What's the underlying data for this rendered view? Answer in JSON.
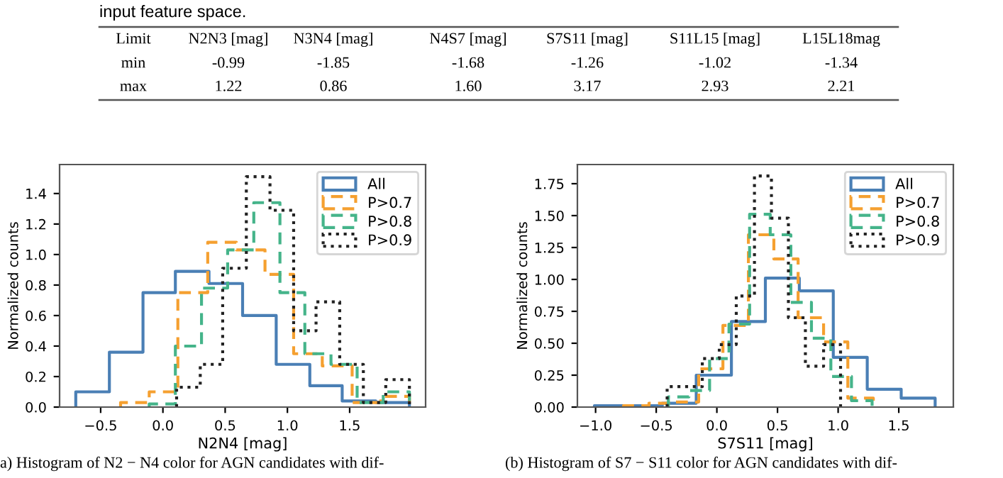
{
  "chart_data": [
    {
      "type": "other",
      "title": "input feature space.",
      "categories": [
        "Limit",
        "N2N3 [mag]",
        "N3N4 [mag]",
        "N4S7 [mag]",
        "S7S11 [mag]",
        "S11L15 [mag]",
        "L15L18mag"
      ],
      "cell_labels": [
        [
          "min",
          "-0.99",
          "-1.85",
          "-1.68",
          "-1.26",
          "-1.02",
          "-1.34"
        ],
        [
          "max",
          "1.22",
          "0.86",
          "1.60",
          "3.17",
          "2.93",
          "2.21"
        ]
      ]
    },
    {
      "type": "line",
      "xlabel": "N2N4 [mag]",
      "ylabel": "Normalized counts",
      "legend": "top right",
      "xlim": [
        -0.83,
        2.11
      ],
      "ylim": [
        0,
        1.59
      ],
      "xticks": [
        {
          "value": -0.5,
          "label": "−0.5"
        },
        {
          "value": 0,
          "label": "0.0"
        },
        {
          "value": 0.5,
          "label": "0.5"
        },
        {
          "value": 1,
          "label": "1.0"
        },
        {
          "value": 1.5,
          "label": "1.5"
        }
      ],
      "yticks": [
        {
          "value": 0,
          "label": "0.0"
        },
        {
          "value": 0.2,
          "label": "0.2"
        },
        {
          "value": 0.4,
          "label": "0.4"
        },
        {
          "value": 0.6,
          "label": "0.6"
        },
        {
          "value": 0.8,
          "label": "0.8"
        },
        {
          "value": 1,
          "label": "1.0"
        },
        {
          "value": 1.2,
          "label": "1.2"
        },
        {
          "value": 1.4,
          "label": "1.4"
        }
      ],
      "annotations": [
        "a) Histogram of N2 − N4 color for AGN candidates with dif-"
      ],
      "series": [
        {
          "name": "All",
          "color": "#4a7fb5",
          "line_style": "solid",
          "x": [
            -0.7,
            -0.7,
            -0.43,
            -0.43,
            -0.16,
            -0.16,
            0.1,
            0.1,
            0.37,
            0.37,
            0.64,
            0.64,
            0.91,
            0.91,
            1.18,
            1.18,
            1.44,
            1.44,
            1.71,
            1.71,
            1.98,
            1.98
          ],
          "values": [
            0,
            0.1,
            0.1,
            0.36,
            0.36,
            0.75,
            0.75,
            0.89,
            0.89,
            0.81,
            0.81,
            0.6,
            0.6,
            0.28,
            0.28,
            0.14,
            0.14,
            0.04,
            0.04,
            0.03,
            0.03,
            0
          ]
        },
        {
          "name": "P>0.7",
          "color": "#f5a030",
          "line_style": "dashed",
          "x": [
            -0.34,
            -0.34,
            -0.11,
            -0.11,
            0.12,
            0.12,
            0.36,
            0.36,
            0.59,
            0.59,
            0.82,
            0.82,
            1.05,
            1.05,
            1.28,
            1.28,
            1.52,
            1.52,
            1.75,
            1.75,
            1.98,
            1.98
          ],
          "values": [
            0,
            0.03,
            0.03,
            0.1,
            0.1,
            0.75,
            0.75,
            1.08,
            1.08,
            1.03,
            1.03,
            0.87,
            0.87,
            0.35,
            0.35,
            0.27,
            0.27,
            0.03,
            0.03,
            0.07,
            0.07,
            0
          ]
        },
        {
          "name": "P>0.8",
          "color": "#45b48a",
          "line_style": "dashed",
          "x": [
            -0.11,
            -0.11,
            0.1,
            0.1,
            0.31,
            0.31,
            0.52,
            0.52,
            0.73,
            0.73,
            0.94,
            0.94,
            1.14,
            1.14,
            1.35,
            1.35,
            1.56,
            1.56,
            1.77,
            1.77,
            1.98,
            1.98
          ],
          "values": [
            0,
            0.02,
            0.02,
            0.4,
            0.4,
            0.78,
            0.78,
            1.03,
            1.03,
            1.34,
            1.34,
            0.75,
            0.75,
            0.35,
            0.35,
            0.28,
            0.28,
            0.03,
            0.03,
            0.1,
            0.1,
            0
          ]
        },
        {
          "name": "P>0.9",
          "color": "#222222",
          "line_style": "dotted",
          "x": [
            0.11,
            0.11,
            0.3,
            0.3,
            0.48,
            0.48,
            0.67,
            0.67,
            0.86,
            0.86,
            1.05,
            1.05,
            1.23,
            1.23,
            1.42,
            1.42,
            1.61,
            1.61,
            1.79,
            1.79,
            1.98,
            1.98
          ],
          "values": [
            0,
            0.13,
            0.13,
            0.28,
            0.28,
            0.91,
            0.91,
            1.51,
            1.51,
            1.29,
            1.29,
            0.5,
            0.5,
            0.69,
            0.69,
            0.28,
            0.28,
            0.03,
            0.03,
            0.18,
            0.18,
            0
          ]
        }
      ]
    },
    {
      "type": "line",
      "xlabel": "S7S11 [mag]",
      "ylabel": "Normalized counts",
      "legend": "top right",
      "xlim": [
        -1.15,
        1.95
      ],
      "ylim": [
        0,
        1.9
      ],
      "xticks": [
        {
          "value": -1,
          "label": "−1.0"
        },
        {
          "value": -0.5,
          "label": "−0.5"
        },
        {
          "value": 0,
          "label": "0.0"
        },
        {
          "value": 0.5,
          "label": "0.5"
        },
        {
          "value": 1,
          "label": "1.0"
        },
        {
          "value": 1.5,
          "label": "1.5"
        }
      ],
      "yticks": [
        {
          "value": 0,
          "label": "0.00"
        },
        {
          "value": 0.25,
          "label": "0.25"
        },
        {
          "value": 0.5,
          "label": "0.50"
        },
        {
          "value": 0.75,
          "label": "0.75"
        },
        {
          "value": 1,
          "label": "1.00"
        },
        {
          "value": 1.25,
          "label": "1.25"
        },
        {
          "value": 1.5,
          "label": "1.50"
        },
        {
          "value": 1.75,
          "label": "1.75"
        }
      ],
      "annotations": [
        "(b) Histogram of S7 − S11 color for AGN candidates with dif-"
      ],
      "series": [
        {
          "name": "All",
          "color": "#4a7fb5",
          "line_style": "solid",
          "x": [
            -1.01,
            -1.01,
            -0.73,
            -0.73,
            -0.45,
            -0.45,
            -0.17,
            -0.17,
            0.12,
            0.12,
            0.4,
            0.4,
            0.68,
            0.68,
            0.96,
            0.96,
            1.24,
            1.24,
            1.52,
            1.52,
            1.8,
            1.8
          ],
          "values": [
            0,
            0.01,
            0.01,
            0.01,
            0.01,
            0.03,
            0.03,
            0.25,
            0.25,
            0.67,
            0.67,
            1.01,
            1.01,
            0.91,
            0.91,
            0.39,
            0.39,
            0.14,
            0.14,
            0.07,
            0.07,
            0
          ]
        },
        {
          "name": "P>0.7",
          "color": "#f5a030",
          "line_style": "dashed",
          "x": [
            -0.77,
            -0.77,
            -0.56,
            -0.56,
            -0.36,
            -0.36,
            -0.15,
            -0.15,
            0.05,
            0.05,
            0.26,
            0.26,
            0.47,
            0.47,
            0.67,
            0.67,
            0.88,
            0.88,
            1.08,
            1.08,
            1.29,
            1.29
          ],
          "values": [
            0,
            0.01,
            0.01,
            0.03,
            0.03,
            0.04,
            0.04,
            0.3,
            0.3,
            0.64,
            0.64,
            1.35,
            1.35,
            1.16,
            1.16,
            0.7,
            0.7,
            0.51,
            0.51,
            0.07,
            0.07,
            0
          ]
        },
        {
          "name": "P>0.8",
          "color": "#45b48a",
          "line_style": "dashed",
          "x": [
            -0.4,
            -0.4,
            -0.23,
            -0.23,
            -0.06,
            -0.06,
            0.1,
            0.1,
            0.27,
            0.27,
            0.44,
            0.44,
            0.61,
            0.61,
            0.78,
            0.78,
            0.94,
            0.94,
            1.11,
            1.11,
            1.28,
            1.28
          ],
          "values": [
            0,
            0.08,
            0.08,
            0.13,
            0.13,
            0.38,
            0.38,
            0.65,
            0.65,
            1.51,
            1.51,
            1.35,
            1.35,
            0.82,
            0.82,
            0.54,
            0.54,
            0.24,
            0.24,
            0.05,
            0.05,
            0
          ]
        },
        {
          "name": "P>0.9",
          "color": "#222222",
          "line_style": "dotted",
          "x": [
            -0.41,
            -0.41,
            -0.27,
            -0.27,
            -0.12,
            -0.12,
            0.02,
            0.02,
            0.16,
            0.16,
            0.31,
            0.31,
            0.45,
            0.45,
            0.59,
            0.59,
            0.73,
            0.73,
            0.88,
            0.88,
            1.02,
            1.02
          ],
          "values": [
            0,
            0.16,
            0.16,
            0.16,
            0.16,
            0.38,
            0.38,
            0.49,
            0.49,
            0.87,
            0.87,
            1.81,
            1.81,
            1.48,
            1.48,
            0.7,
            0.7,
            0.32,
            0.32,
            0.49,
            0.49,
            0
          ]
        }
      ]
    }
  ]
}
